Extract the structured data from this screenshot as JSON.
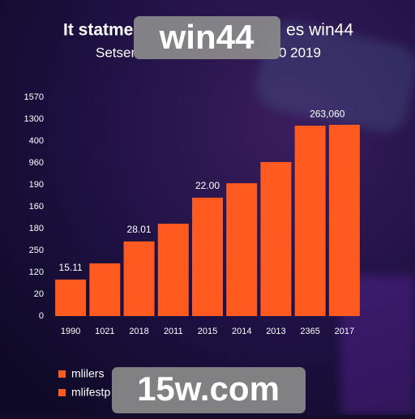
{
  "chart_data": {
    "type": "bar",
    "title_parts": [
      "It statme",
      "es win44"
    ],
    "subtitle_parts": [
      "Setser",
      "0 2019"
    ],
    "categories": [
      "1990",
      "1021",
      "2018",
      "2011",
      "2015",
      "2014",
      "2013",
      "2365",
      "2017"
    ],
    "values": [
      1.67,
      2.41,
      3.41,
      4.22,
      5.41,
      6.07,
      7.04,
      8.7,
      8.74
    ],
    "color": "#ff5a1f",
    "ylim": [
      0,
      10
    ],
    "yticks": [
      {
        "value": 0,
        "label": "0"
      },
      {
        "value": 1,
        "label": "20"
      },
      {
        "value": 2,
        "label": "120"
      },
      {
        "value": 3,
        "label": "250"
      },
      {
        "value": 4,
        "label": "180"
      },
      {
        "value": 5,
        "label": "160"
      },
      {
        "value": 6,
        "label": "190"
      },
      {
        "value": 7,
        "label": "960"
      },
      {
        "value": 8,
        "label": "400"
      },
      {
        "value": 9,
        "label": "1300"
      },
      {
        "value": 10,
        "label": "1570"
      }
    ],
    "annotations": [
      "15.11",
      "28.01",
      "22.00",
      "263,060"
    ],
    "legend": [
      "mlilers",
      "mlifestp"
    ],
    "grid": false
  },
  "watermarks": [
    "win44",
    "15w.com"
  ]
}
